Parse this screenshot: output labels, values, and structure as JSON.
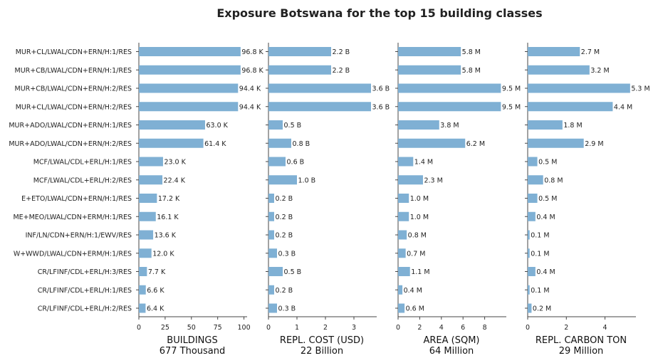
{
  "chart_data": {
    "type": "bar",
    "orientation": "horizontal",
    "title": "Exposure Botswana for the top 15 building classes",
    "bar_color": "#7fb0d4",
    "categories": [
      "MUR+CL/LWAL/CDN+ERN/H:1/RES",
      "MUR+CB/LWAL/CDN+ERN/H:1/RES",
      "MUR+CB/LWAL/CDN+ERN/H:2/RES",
      "MUR+CL/LWAL/CDN+ERN/H:2/RES",
      "MUR+ADO/LWAL/CDN+ERN/H:1/RES",
      "MUR+ADO/LWAL/CDN+ERN/H:2/RES",
      "MCF/LWAL/CDL+ERL/H:1/RES",
      "MCF/LWAL/CDL+ERL/H:2/RES",
      "E+ETO/LWAL/CDN+ERN/H:1/RES",
      "ME+MEO/LWAL/CDN+ERM/H:1/RES",
      "INF/LN/CDN+ERN/H:1/EWV/RES",
      "W+WWD/LWAL/CDN+ERM/H:1/RES",
      "CR/LFINF/CDL+ERL/H:3/RES",
      "CR/LFINF/CDL+ERL/H:1/RES",
      "CR/LFINF/CDL+ERL/H:2/RES"
    ],
    "panels": [
      {
        "xlabel": "BUILDINGS",
        "total": "677 Thousand",
        "unit": "thousand",
        "xlim": [
          0,
          103
        ],
        "ticks": [
          0,
          25,
          50,
          75,
          100
        ],
        "tick_labels": [
          "0",
          "25",
          "50",
          "75",
          "100"
        ],
        "values": [
          96.8,
          96.8,
          94.4,
          94.4,
          63.0,
          61.4,
          23.0,
          22.4,
          17.2,
          16.1,
          13.6,
          12.0,
          7.7,
          6.6,
          6.4
        ],
        "labels": [
          "96.8 K",
          "96.8 K",
          "94.4 K",
          "94.4 K",
          "63.0 K",
          "61.4 K",
          "23.0 K",
          "22.4 K",
          "17.2 K",
          "16.1 K",
          "13.6 K",
          "12.0 K",
          "7.7 K",
          "6.6 K",
          "6.4 K"
        ]
      },
      {
        "xlabel": "REPL. COST (USD)",
        "total": "22 Billion",
        "unit": "billion",
        "xlim": [
          0,
          3.8
        ],
        "ticks": [
          0,
          1,
          2,
          3
        ],
        "tick_labels": [
          "0",
          "1",
          "2",
          "3"
        ],
        "values": [
          2.2,
          2.2,
          3.6,
          3.6,
          0.5,
          0.8,
          0.6,
          1.0,
          0.2,
          0.2,
          0.2,
          0.3,
          0.5,
          0.2,
          0.3
        ],
        "labels": [
          "2.2 B",
          "2.2 B",
          "3.6 B",
          "3.6 B",
          "0.5 B",
          "0.8 B",
          "0.6 B",
          "1.0 B",
          "0.2 B",
          "0.2 B",
          "0.2 B",
          "0.3 B",
          "0.5 B",
          "0.2 B",
          "0.3 B"
        ]
      },
      {
        "xlabel": "AREA (SQM)",
        "total": "64 Million",
        "unit": "million",
        "xlim": [
          0,
          10
        ],
        "ticks": [
          0,
          2,
          4,
          6,
          8
        ],
        "tick_labels": [
          "0",
          "2",
          "4",
          "6",
          "8"
        ],
        "values": [
          5.8,
          5.8,
          9.5,
          9.5,
          3.8,
          6.2,
          1.4,
          2.3,
          1.0,
          1.0,
          0.8,
          0.7,
          1.1,
          0.4,
          0.6
        ],
        "labels": [
          "5.8 M",
          "5.8 M",
          "9.5 M",
          "9.5 M",
          "3.8 M",
          "6.2 M",
          "1.4 M",
          "2.3 M",
          "1.0 M",
          "1.0 M",
          "0.8 M",
          "0.7 M",
          "1.1 M",
          "0.4 M",
          "0.6 M"
        ]
      },
      {
        "xlabel": "REPL. CARBON TON",
        "total": "29 Million",
        "unit": "million",
        "xlim": [
          0,
          5.6
        ],
        "ticks": [
          0,
          2,
          4
        ],
        "tick_labels": [
          "0",
          "2",
          "4"
        ],
        "values": [
          2.7,
          3.2,
          5.3,
          4.4,
          1.8,
          2.9,
          0.5,
          0.8,
          0.5,
          0.4,
          0.1,
          0.1,
          0.4,
          0.1,
          0.2
        ],
        "labels": [
          "2.7 M",
          "3.2 M",
          "5.3 M",
          "4.4 M",
          "1.8 M",
          "2.9 M",
          "0.5 M",
          "0.8 M",
          "0.5 M",
          "0.4 M",
          "0.1 M",
          "0.1 M",
          "0.4 M",
          "0.1 M",
          "0.2 M"
        ]
      }
    ]
  }
}
